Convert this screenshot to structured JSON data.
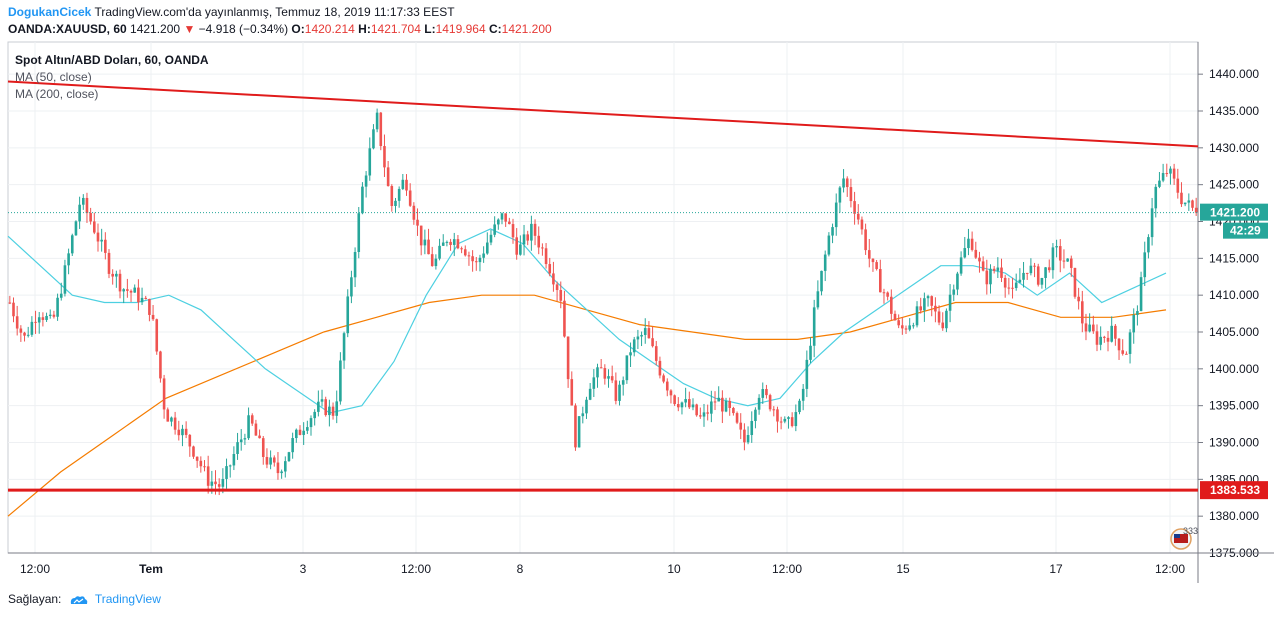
{
  "header": {
    "author": "DogukanCicek",
    "published": "TradingView.com'da yayınlanmış, Temmuz 18, 2019 11:17:33 EEST"
  },
  "quote": {
    "symbol": "OANDA:XAUUSD, 60",
    "last": "1421.200",
    "change_arrow": "▼",
    "change": "−4.918 (−0.34%)",
    "open_label": "O:",
    "open": "1420.214",
    "high_label": "H:",
    "high": "1421.704",
    "low_label": "L:",
    "low": "1419.964",
    "close_label": "C:",
    "close": "1421.200"
  },
  "legend": {
    "title": "Spot Altın/ABD Doları, 60, OANDA",
    "ma50": "MA (50, close)",
    "ma200": "MA (200, close)"
  },
  "footer": {
    "provided_by": "Sağlayan:",
    "brand": "TradingView"
  },
  "colors": {
    "up": "#26a69a",
    "down": "#ef5350",
    "ma50": "#4dd0e1",
    "ma200": "#f57c00",
    "trendline": "#e01b1b",
    "support": "#e01b1b",
    "price_label": "#26a69a",
    "grid": "#eef0f3"
  },
  "chart_data": {
    "type": "candlestick",
    "symbol": "OANDA:XAUUSD",
    "interval": "60",
    "ylim": [
      1375,
      1443
    ],
    "y_ticks": [
      "1375.000",
      "1380.000",
      "1385.000",
      "1390.000",
      "1395.000",
      "1400.000",
      "1405.000",
      "1410.000",
      "1415.000",
      "1420.000",
      "1425.000",
      "1430.000",
      "1435.000",
      "1440.000"
    ],
    "x_ticks": [
      "12:00",
      "Tem",
      "3",
      "12:00",
      "8",
      "10",
      "12:00",
      "15",
      "17",
      "12:00"
    ],
    "price_labels": {
      "last": "1421.200",
      "countdown": "42:29",
      "support": "1383.533"
    },
    "trendline_resistance": {
      "start": 1439.0,
      "end": 1430.2
    },
    "support_level": 1383.533,
    "close_path": [
      1409,
      1404,
      1408,
      1406,
      1414,
      1423,
      1419,
      1414,
      1411,
      1410,
      1408,
      1394,
      1392,
      1389,
      1385,
      1384,
      1389,
      1393,
      1388,
      1386,
      1390,
      1393,
      1395,
      1394,
      1410,
      1425,
      1434,
      1422,
      1426,
      1418,
      1414,
      1418,
      1417,
      1414,
      1418,
      1421,
      1416,
      1419,
      1415,
      1410,
      1390,
      1398,
      1400,
      1396,
      1403,
      1405,
      1400,
      1396,
      1395,
      1393,
      1396,
      1394,
      1390,
      1397,
      1395,
      1392,
      1395,
      1408,
      1418,
      1426,
      1421,
      1414,
      1410,
      1405,
      1407,
      1409,
      1406,
      1413,
      1418,
      1412,
      1414,
      1410,
      1414,
      1412,
      1416,
      1414,
      1406,
      1404,
      1405,
      1402,
      1410,
      1424,
      1427,
      1423,
      1421.2
    ],
    "ma50_path": [
      1418,
      1414,
      1410,
      1409,
      1409,
      1410,
      1408,
      1404,
      1400,
      1397,
      1394,
      1395,
      1401,
      1410,
      1417,
      1419,
      1417,
      1412,
      1408,
      1404,
      1401,
      1398,
      1396,
      1395,
      1396,
      1401,
      1405,
      1408,
      1411,
      1414,
      1414,
      1413,
      1410,
      1413,
      1409,
      1411,
      1413
    ],
    "ma200_path": [
      1380,
      1386,
      1391,
      1396,
      1399,
      1402,
      1405,
      1407,
      1409,
      1410,
      1410,
      1408,
      1406,
      1405,
      1404,
      1404,
      1405,
      1407,
      1409,
      1409,
      1407,
      1407,
      1408
    ]
  }
}
